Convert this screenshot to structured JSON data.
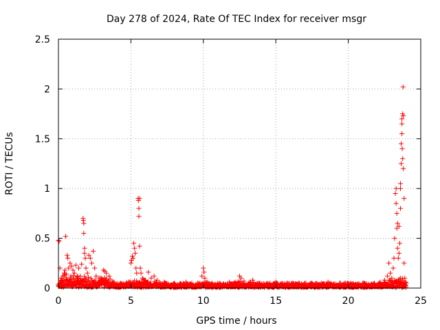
{
  "chart_data": {
    "type": "scatter",
    "title": "Day 278 of 2024, Rate Of TEC Index for receiver msgr",
    "xlabel": "GPS time / hours",
    "ylabel": "ROTI / TECUs",
    "xlim": [
      0,
      25
    ],
    "ylim": [
      0,
      2.5
    ],
    "xticks": [
      0,
      5,
      10,
      15,
      20,
      25
    ],
    "yticks": [
      0,
      0.5,
      1,
      1.5,
      2,
      2.5
    ],
    "xtick_labels": [
      "0",
      "5",
      "10",
      "15",
      "20",
      "25"
    ],
    "ytick_labels": [
      "0",
      "0.5",
      "1",
      "1.5",
      "2",
      "2.5"
    ],
    "grid": true,
    "marker": "+",
    "color": "#ff0000",
    "points": [
      [
        0.0,
        0.48
      ],
      [
        0.05,
        0.47
      ],
      [
        0.1,
        0.2
      ],
      [
        0.15,
        0.08
      ],
      [
        0.2,
        0.1
      ],
      [
        0.25,
        0.05
      ],
      [
        0.3,
        0.12
      ],
      [
        0.4,
        0.15
      ],
      [
        0.45,
        0.18
      ],
      [
        0.5,
        0.52
      ],
      [
        0.55,
        0.14
      ],
      [
        0.6,
        0.33
      ],
      [
        0.65,
        0.3
      ],
      [
        0.7,
        0.2
      ],
      [
        0.8,
        0.25
      ],
      [
        0.85,
        0.12
      ],
      [
        0.9,
        0.22
      ],
      [
        1.0,
        0.18
      ],
      [
        1.1,
        0.15
      ],
      [
        1.2,
        0.23
      ],
      [
        1.3,
        0.1
      ],
      [
        1.4,
        0.2
      ],
      [
        1.5,
        0.12
      ],
      [
        1.6,
        0.24
      ],
      [
        1.7,
        0.7
      ],
      [
        1.72,
        0.68
      ],
      [
        1.75,
        0.65
      ],
      [
        1.75,
        0.55
      ],
      [
        1.8,
        0.4
      ],
      [
        1.8,
        0.35
      ],
      [
        1.85,
        0.3
      ],
      [
        1.9,
        0.2
      ],
      [
        2.0,
        0.15
      ],
      [
        2.1,
        0.33
      ],
      [
        2.2,
        0.3
      ],
      [
        2.3,
        0.25
      ],
      [
        2.4,
        0.37
      ],
      [
        2.5,
        0.2
      ],
      [
        2.6,
        0.12
      ],
      [
        2.8,
        0.1
      ],
      [
        3.0,
        0.08
      ],
      [
        3.1,
        0.18
      ],
      [
        3.2,
        0.17
      ],
      [
        3.3,
        0.15
      ],
      [
        3.5,
        0.12
      ],
      [
        3.7,
        0.06
      ],
      [
        4.0,
        0.04
      ],
      [
        4.3,
        0.05
      ],
      [
        4.6,
        0.04
      ],
      [
        4.9,
        0.06
      ],
      [
        5.0,
        0.25
      ],
      [
        5.05,
        0.28
      ],
      [
        5.1,
        0.32
      ],
      [
        5.15,
        0.3
      ],
      [
        5.2,
        0.45
      ],
      [
        5.25,
        0.4
      ],
      [
        5.3,
        0.35
      ],
      [
        5.35,
        0.2
      ],
      [
        5.4,
        0.15
      ],
      [
        5.5,
        0.9
      ],
      [
        5.52,
        0.88
      ],
      [
        5.55,
        0.8
      ],
      [
        5.55,
        0.72
      ],
      [
        5.6,
        0.9
      ],
      [
        5.6,
        0.42
      ],
      [
        5.65,
        0.2
      ],
      [
        5.7,
        0.15
      ],
      [
        5.8,
        0.1
      ],
      [
        6.0,
        0.08
      ],
      [
        6.2,
        0.16
      ],
      [
        6.4,
        0.1
      ],
      [
        6.6,
        0.12
      ],
      [
        6.8,
        0.08
      ],
      [
        7.0,
        0.05
      ],
      [
        7.3,
        0.06
      ],
      [
        7.6,
        0.04
      ],
      [
        8.0,
        0.05
      ],
      [
        8.4,
        0.04
      ],
      [
        8.8,
        0.06
      ],
      [
        9.2,
        0.04
      ],
      [
        9.6,
        0.05
      ],
      [
        9.9,
        0.12
      ],
      [
        10.0,
        0.2
      ],
      [
        10.05,
        0.16
      ],
      [
        10.1,
        0.1
      ],
      [
        10.3,
        0.06
      ],
      [
        10.6,
        0.05
      ],
      [
        11.0,
        0.05
      ],
      [
        11.4,
        0.04
      ],
      [
        11.8,
        0.06
      ],
      [
        12.2,
        0.06
      ],
      [
        12.5,
        0.12
      ],
      [
        12.6,
        0.1
      ],
      [
        12.8,
        0.07
      ],
      [
        13.2,
        0.06
      ],
      [
        13.4,
        0.08
      ],
      [
        13.8,
        0.05
      ],
      [
        14.2,
        0.04
      ],
      [
        14.6,
        0.05
      ],
      [
        15.0,
        0.06
      ],
      [
        15.4,
        0.04
      ],
      [
        15.8,
        0.05
      ],
      [
        16.2,
        0.04
      ],
      [
        16.6,
        0.05
      ],
      [
        17.0,
        0.05
      ],
      [
        17.4,
        0.04
      ],
      [
        17.8,
        0.05
      ],
      [
        18.2,
        0.04
      ],
      [
        18.6,
        0.06
      ],
      [
        19.0,
        0.04
      ],
      [
        19.4,
        0.05
      ],
      [
        19.8,
        0.05
      ],
      [
        20.2,
        0.04
      ],
      [
        20.6,
        0.04
      ],
      [
        21.0,
        0.05
      ],
      [
        21.4,
        0.04
      ],
      [
        21.8,
        0.05
      ],
      [
        22.2,
        0.06
      ],
      [
        22.5,
        0.08
      ],
      [
        22.7,
        0.12
      ],
      [
        22.8,
        0.25
      ],
      [
        22.9,
        0.15
      ],
      [
        23.0,
        0.1
      ],
      [
        23.1,
        0.2
      ],
      [
        23.15,
        0.3
      ],
      [
        23.2,
        0.5
      ],
      [
        23.25,
        0.95
      ],
      [
        23.3,
        1.0
      ],
      [
        23.3,
        0.85
      ],
      [
        23.35,
        0.75
      ],
      [
        23.35,
        0.6
      ],
      [
        23.4,
        0.65
      ],
      [
        23.4,
        0.4
      ],
      [
        23.45,
        0.3
      ],
      [
        23.5,
        0.62
      ],
      [
        23.5,
        0.35
      ],
      [
        23.55,
        0.45
      ],
      [
        23.6,
        1.0
      ],
      [
        23.6,
        1.05
      ],
      [
        23.6,
        0.8
      ],
      [
        23.65,
        1.25
      ],
      [
        23.65,
        1.45
      ],
      [
        23.7,
        1.65
      ],
      [
        23.7,
        1.7
      ],
      [
        23.7,
        1.55
      ],
      [
        23.72,
        1.4
      ],
      [
        23.75,
        1.75
      ],
      [
        23.75,
        1.3
      ],
      [
        23.78,
        2.02
      ],
      [
        23.8,
        1.73
      ],
      [
        23.8,
        1.2
      ],
      [
        23.85,
        0.9
      ],
      [
        23.85,
        0.25
      ],
      [
        23.9,
        0.1
      ],
      [
        23.95,
        0.06
      ],
      [
        24.0,
        0.05
      ]
    ],
    "band": [
      [
        0.0,
        0.06
      ],
      [
        0.5,
        0.14
      ],
      [
        1.0,
        0.12
      ],
      [
        1.5,
        0.12
      ],
      [
        2.0,
        0.12
      ],
      [
        2.5,
        0.1
      ],
      [
        3.0,
        0.1
      ],
      [
        3.5,
        0.09
      ],
      [
        4.0,
        0.04
      ],
      [
        4.5,
        0.04
      ],
      [
        5.0,
        0.06
      ],
      [
        5.5,
        0.08
      ],
      [
        6.0,
        0.08
      ],
      [
        6.5,
        0.07
      ],
      [
        7.0,
        0.05
      ],
      [
        7.5,
        0.04
      ],
      [
        8.0,
        0.04
      ],
      [
        8.5,
        0.04
      ],
      [
        9.0,
        0.04
      ],
      [
        9.5,
        0.04
      ],
      [
        10.0,
        0.05
      ],
      [
        10.5,
        0.04
      ],
      [
        11.0,
        0.04
      ],
      [
        11.5,
        0.04
      ],
      [
        12.0,
        0.04
      ],
      [
        12.5,
        0.06
      ],
      [
        13.0,
        0.04
      ],
      [
        13.5,
        0.05
      ],
      [
        14.0,
        0.04
      ],
      [
        14.5,
        0.04
      ],
      [
        15.0,
        0.04
      ],
      [
        15.5,
        0.04
      ],
      [
        16.0,
        0.04
      ],
      [
        16.5,
        0.04
      ],
      [
        17.0,
        0.04
      ],
      [
        17.5,
        0.04
      ],
      [
        18.0,
        0.04
      ],
      [
        18.5,
        0.04
      ],
      [
        19.0,
        0.04
      ],
      [
        19.5,
        0.04
      ],
      [
        20.0,
        0.04
      ],
      [
        20.5,
        0.04
      ],
      [
        21.0,
        0.04
      ],
      [
        21.5,
        0.04
      ],
      [
        22.0,
        0.04
      ],
      [
        22.5,
        0.05
      ],
      [
        23.0,
        0.08
      ],
      [
        23.5,
        0.12
      ],
      [
        24.0,
        0.05
      ]
    ]
  }
}
